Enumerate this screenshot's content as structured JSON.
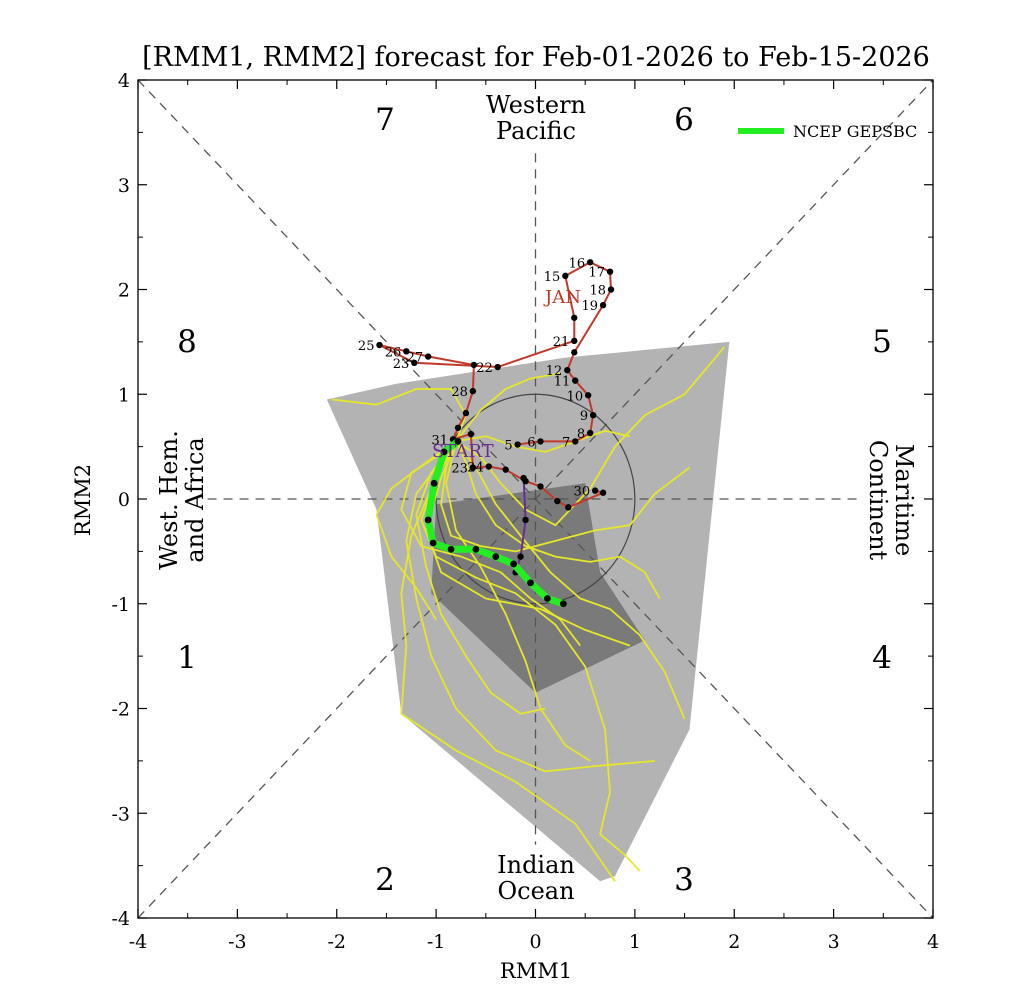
{
  "chart_data": {
    "type": "line",
    "title": "[RMM1, RMM2] forecast for Feb-01-2026 to Feb-15-2026",
    "xlabel": "RMM1",
    "ylabel": "RMM2",
    "xlim": [
      -4,
      4
    ],
    "ylim": [
      -4,
      4
    ],
    "xticks": [
      "-4",
      "-3",
      "-2",
      "-1",
      "0",
      "1",
      "2",
      "3",
      "4"
    ],
    "yticks": [
      "-4",
      "-3",
      "-2",
      "-1",
      "0",
      "1",
      "2",
      "3",
      "4"
    ],
    "phase_labels": [
      "1",
      "2",
      "3",
      "4",
      "5",
      "6",
      "7",
      "8"
    ],
    "region_labels": {
      "top": [
        "Western",
        "Pacific"
      ],
      "bottom": [
        "Indian",
        "Ocean"
      ],
      "left": [
        "West. Hem.",
        "and Africa"
      ],
      "right": [
        "Maritime",
        "Continent"
      ]
    },
    "legend": {
      "position": "top-right",
      "label": "NCEP GEPSBC",
      "color": "#22ee22"
    },
    "colors": {
      "observed": "#c0392b",
      "start_segment": "#6a2c91",
      "members": "#e6e62a",
      "ensemble_mean": "#22ee22",
      "outer_spread": "#b3b3b3",
      "inner_spread": "#7a7a7a"
    },
    "annotations": {
      "month": "JAN",
      "start": "START"
    },
    "observed": [
      {
        "label": "30",
        "x": 0.6,
        "y": 0.08
      },
      {
        "label": "",
        "x": 0.68,
        "y": 0.06
      },
      {
        "label": "",
        "x": 0.33,
        "y": -0.08
      },
      {
        "label": "",
        "x": 0.22,
        "y": -0.02
      },
      {
        "label": "",
        "x": 0.05,
        "y": 0.12
      },
      {
        "label": "",
        "x": -0.1,
        "y": 0.17
      },
      {
        "label": "",
        "x": -0.3,
        "y": 0.28
      },
      {
        "label": "24",
        "x": -0.47,
        "y": 0.31
      },
      {
        "label": "23",
        "x": -0.63,
        "y": 0.3
      },
      {
        "label": "",
        "x": -0.65,
        "y": 0.62
      },
      {
        "label": "31",
        "x": -0.83,
        "y": 0.57
      },
      {
        "label": "",
        "x": -0.78,
        "y": 0.68
      },
      {
        "label": "",
        "x": -0.7,
        "y": 0.82
      },
      {
        "label": "28",
        "x": -0.63,
        "y": 1.03
      },
      {
        "label": "",
        "x": -0.62,
        "y": 1.28
      },
      {
        "label": "27",
        "x": -1.08,
        "y": 1.36
      },
      {
        "label": "26",
        "x": -1.3,
        "y": 1.41
      },
      {
        "label": "25",
        "x": -1.57,
        "y": 1.47
      },
      {
        "label": "23",
        "x": -1.22,
        "y": 1.3
      },
      {
        "label": "22",
        "x": -0.38,
        "y": 1.26
      },
      {
        "label": "21",
        "x": 0.39,
        "y": 1.51
      },
      {
        "label": "",
        "x": 0.39,
        "y": 1.73
      },
      {
        "label": "15",
        "x": 0.3,
        "y": 2.13
      },
      {
        "label": "16",
        "x": 0.55,
        "y": 2.26
      },
      {
        "label": "17",
        "x": 0.75,
        "y": 2.17
      },
      {
        "label": "18",
        "x": 0.76,
        "y": 2.0
      },
      {
        "label": "19",
        "x": 0.68,
        "y": 1.85
      },
      {
        "label": "",
        "x": 0.39,
        "y": 1.4
      },
      {
        "label": "12",
        "x": 0.32,
        "y": 1.23
      },
      {
        "label": "11",
        "x": 0.4,
        "y": 1.13
      },
      {
        "label": "10",
        "x": 0.53,
        "y": 0.99
      },
      {
        "label": "9",
        "x": 0.58,
        "y": 0.8
      },
      {
        "label": "8",
        "x": 0.55,
        "y": 0.63
      },
      {
        "label": "7",
        "x": 0.4,
        "y": 0.55
      },
      {
        "label": "6",
        "x": 0.05,
        "y": 0.55
      },
      {
        "label": "5",
        "x": -0.18,
        "y": 0.52
      }
    ],
    "start_segment": [
      {
        "x": -0.12,
        "y": 0.2
      },
      {
        "x": -0.1,
        "y": -0.2
      },
      {
        "x": -0.15,
        "y": -0.55
      },
      {
        "x": -0.2,
        "y": -0.7
      }
    ],
    "ensemble_mean": [
      {
        "x": -0.78,
        "y": 0.55
      },
      {
        "x": -0.92,
        "y": 0.45
      },
      {
        "x": -1.02,
        "y": 0.15
      },
      {
        "x": -1.08,
        "y": -0.2
      },
      {
        "x": -1.03,
        "y": -0.42
      },
      {
        "x": -0.85,
        "y": -0.48
      },
      {
        "x": -0.6,
        "y": -0.48
      },
      {
        "x": -0.4,
        "y": -0.55
      },
      {
        "x": -0.22,
        "y": -0.62
      },
      {
        "x": -0.05,
        "y": -0.8
      },
      {
        "x": 0.12,
        "y": -0.95
      },
      {
        "x": 0.28,
        "y": -1.0
      }
    ],
    "outer_spread": [
      {
        "x": -2.1,
        "y": 0.95
      },
      {
        "x": -1.4,
        "y": 1.1
      },
      {
        "x": 0.3,
        "y": 1.35
      },
      {
        "x": 1.95,
        "y": 1.5
      },
      {
        "x": 1.55,
        "y": -2.2
      },
      {
        "x": 0.8,
        "y": -3.6
      },
      {
        "x": 0.65,
        "y": -3.65
      },
      {
        "x": -1.35,
        "y": -2.05
      },
      {
        "x": -1.6,
        "y": -0.1
      }
    ],
    "inner_spread": [
      {
        "x": -1.0,
        "y": -0.05
      },
      {
        "x": 0.5,
        "y": 0.15
      },
      {
        "x": 0.65,
        "y": -0.7
      },
      {
        "x": 1.1,
        "y": -1.35
      },
      {
        "x": 0.0,
        "y": -1.85
      },
      {
        "x": -1.05,
        "y": -0.9
      }
    ],
    "members": [
      [
        {
          "x": -0.8,
          "y": 0.55
        },
        {
          "x": -1.0,
          "y": 0.3
        },
        {
          "x": -1.2,
          "y": 0.05
        },
        {
          "x": -1.3,
          "y": -0.4
        },
        {
          "x": -1.2,
          "y": -0.95
        },
        {
          "x": -1.05,
          "y": -1.5
        },
        {
          "x": -0.8,
          "y": -2.0
        },
        {
          "x": -0.4,
          "y": -2.4
        },
        {
          "x": 0.1,
          "y": -2.6
        },
        {
          "x": 0.6,
          "y": -2.55
        },
        {
          "x": 1.2,
          "y": -2.5
        }
      ],
      [
        {
          "x": -0.8,
          "y": 0.55
        },
        {
          "x": -0.95,
          "y": 0.2
        },
        {
          "x": -1.1,
          "y": -0.3
        },
        {
          "x": -0.95,
          "y": -0.7
        },
        {
          "x": -0.5,
          "y": -0.95
        },
        {
          "x": 0.05,
          "y": -1.05
        },
        {
          "x": 0.5,
          "y": -1.25
        },
        {
          "x": 0.95,
          "y": -1.4
        }
      ],
      [
        {
          "x": -0.8,
          "y": 0.55
        },
        {
          "x": -0.55,
          "y": 0.4
        },
        {
          "x": -0.35,
          "y": 0.15
        },
        {
          "x": -0.1,
          "y": -0.1
        },
        {
          "x": 0.2,
          "y": -0.25
        },
        {
          "x": 0.55,
          "y": 0.1
        },
        {
          "x": 0.8,
          "y": 0.5
        },
        {
          "x": 1.1,
          "y": 0.8
        },
        {
          "x": 1.5,
          "y": 1.0
        },
        {
          "x": 1.9,
          "y": 1.45
        }
      ],
      [
        {
          "x": -0.8,
          "y": 0.55
        },
        {
          "x": -0.7,
          "y": 0.8
        },
        {
          "x": -0.85,
          "y": 1.05
        },
        {
          "x": -1.2,
          "y": 1.05
        },
        {
          "x": -1.6,
          "y": 0.9
        },
        {
          "x": -2.05,
          "y": 0.95
        }
      ],
      [
        {
          "x": -0.8,
          "y": 0.55
        },
        {
          "x": -0.55,
          "y": 0.85
        },
        {
          "x": -0.3,
          "y": 1.05
        },
        {
          "x": -0.05,
          "y": 1.15
        },
        {
          "x": 0.25,
          "y": 1.2
        }
      ],
      [
        {
          "x": -0.8,
          "y": 0.55
        },
        {
          "x": -1.0,
          "y": 0.2
        },
        {
          "x": -1.15,
          "y": -0.2
        },
        {
          "x": -1.0,
          "y": -0.55
        },
        {
          "x": -0.6,
          "y": -0.75
        },
        {
          "x": -0.2,
          "y": -0.9
        },
        {
          "x": 0.2,
          "y": -1.2
        },
        {
          "x": 0.5,
          "y": -1.6
        },
        {
          "x": 0.7,
          "y": -2.2
        },
        {
          "x": 0.75,
          "y": -2.8
        },
        {
          "x": 0.65,
          "y": -3.2
        },
        {
          "x": 0.9,
          "y": -3.4
        },
        {
          "x": 1.05,
          "y": -3.55
        }
      ],
      [
        {
          "x": -0.8,
          "y": 0.55
        },
        {
          "x": -1.05,
          "y": 0.1
        },
        {
          "x": -1.25,
          "y": -0.35
        },
        {
          "x": -1.35,
          "y": -0.9
        },
        {
          "x": -1.3,
          "y": -1.4
        },
        {
          "x": -1.35,
          "y": -2.05
        },
        {
          "x": -0.8,
          "y": -2.4
        },
        {
          "x": -0.2,
          "y": -2.7
        },
        {
          "x": 0.4,
          "y": -3.1
        },
        {
          "x": 0.8,
          "y": -3.65
        }
      ],
      [
        {
          "x": -0.8,
          "y": 0.55
        },
        {
          "x": -0.9,
          "y": 0.3
        },
        {
          "x": -0.95,
          "y": -0.05
        },
        {
          "x": -0.85,
          "y": -0.35
        },
        {
          "x": -0.55,
          "y": -0.45
        },
        {
          "x": -0.2,
          "y": -0.5
        },
        {
          "x": 0.2,
          "y": -0.4
        },
        {
          "x": 0.6,
          "y": -0.3
        },
        {
          "x": 0.95,
          "y": -0.25
        },
        {
          "x": 1.2,
          "y": 0.05
        },
        {
          "x": 1.55,
          "y": 0.3
        }
      ],
      [
        {
          "x": -0.8,
          "y": 0.55
        },
        {
          "x": -1.1,
          "y": 0.35
        },
        {
          "x": -1.45,
          "y": 0.1
        },
        {
          "x": -1.6,
          "y": -0.15
        },
        {
          "x": -1.45,
          "y": -0.55
        },
        {
          "x": -1.2,
          "y": -0.85
        },
        {
          "x": -1.0,
          "y": -1.15
        }
      ],
      [
        {
          "x": -0.8,
          "y": 0.55
        },
        {
          "x": -0.9,
          "y": 0.15
        },
        {
          "x": -0.8,
          "y": -0.3
        },
        {
          "x": -0.55,
          "y": -0.65
        },
        {
          "x": -0.3,
          "y": -1.1
        },
        {
          "x": -0.1,
          "y": -1.55
        },
        {
          "x": 0.05,
          "y": -2.0
        },
        {
          "x": 0.3,
          "y": -2.35
        },
        {
          "x": 0.55,
          "y": -2.5
        }
      ],
      [
        {
          "x": -0.8,
          "y": 0.55
        },
        {
          "x": -0.6,
          "y": 0.3
        },
        {
          "x": -0.4,
          "y": -0.05
        },
        {
          "x": -0.15,
          "y": -0.35
        },
        {
          "x": 0.15,
          "y": -0.7
        },
        {
          "x": 0.45,
          "y": -0.95
        },
        {
          "x": 0.75,
          "y": -1.05
        },
        {
          "x": 1.05,
          "y": -1.3
        },
        {
          "x": 1.3,
          "y": -1.65
        },
        {
          "x": 1.5,
          "y": -2.1
        }
      ],
      [
        {
          "x": -0.8,
          "y": 0.55
        },
        {
          "x": -1.0,
          "y": 0.4
        },
        {
          "x": -1.25,
          "y": 0.25
        },
        {
          "x": -1.35,
          "y": -0.1
        },
        {
          "x": -1.15,
          "y": -0.45
        },
        {
          "x": -0.75,
          "y": -0.55
        },
        {
          "x": -0.35,
          "y": -0.7
        },
        {
          "x": -0.05,
          "y": -0.95
        },
        {
          "x": 0.25,
          "y": -1.15
        },
        {
          "x": 0.45,
          "y": -1.4
        }
      ],
      [
        {
          "x": -0.8,
          "y": 0.55
        },
        {
          "x": -0.7,
          "y": 0.35
        },
        {
          "x": -0.6,
          "y": 0.05
        },
        {
          "x": -0.4,
          "y": -0.25
        },
        {
          "x": -0.1,
          "y": -0.45
        },
        {
          "x": 0.2,
          "y": -0.55
        },
        {
          "x": 0.55,
          "y": -0.6
        },
        {
          "x": 0.85,
          "y": -0.55
        },
        {
          "x": 1.1,
          "y": -0.7
        },
        {
          "x": 1.25,
          "y": -0.95
        }
      ],
      [
        {
          "x": -0.8,
          "y": 0.55
        },
        {
          "x": -1.05,
          "y": 0.25
        },
        {
          "x": -1.2,
          "y": -0.15
        },
        {
          "x": -1.1,
          "y": -0.65
        },
        {
          "x": -0.95,
          "y": -1.1
        },
        {
          "x": -0.7,
          "y": -1.5
        },
        {
          "x": -0.45,
          "y": -1.85
        },
        {
          "x": -0.15,
          "y": -2.05
        },
        {
          "x": 0.1,
          "y": -2.0
        }
      ],
      [
        {
          "x": -0.8,
          "y": 0.55
        },
        {
          "x": -0.5,
          "y": 0.6
        },
        {
          "x": -0.2,
          "y": 0.5
        },
        {
          "x": 0.1,
          "y": 0.45
        },
        {
          "x": 0.4,
          "y": 0.55
        },
        {
          "x": 0.7,
          "y": 0.65
        },
        {
          "x": 0.95,
          "y": 0.6
        }
      ]
    ],
    "rmm_circle_radius": 1
  }
}
